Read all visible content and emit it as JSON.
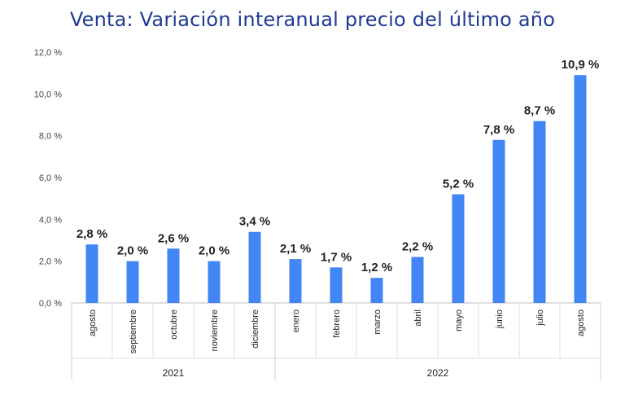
{
  "chart_data": {
    "type": "bar",
    "title": "Venta: Variación interanual precio del último año",
    "xlabel": "",
    "ylabel": "",
    "ylim": [
      0,
      12
    ],
    "ytick_labels": [
      "0,0 %",
      "2,0 %",
      "4,0 %",
      "6,0 %",
      "8,0 %",
      "10,0 %",
      "12,0 %"
    ],
    "categories": [
      "agosto",
      "septiembre",
      "octubre",
      "noviembre",
      "diciembre",
      "enero",
      "febrero",
      "marzo",
      "abril",
      "mayo",
      "junio",
      "julio",
      "agosto"
    ],
    "groups": [
      {
        "label": "2021",
        "count": 5
      },
      {
        "label": "2022",
        "count": 8
      }
    ],
    "values": [
      2.8,
      2.0,
      2.6,
      2.0,
      3.4,
      2.1,
      1.7,
      1.2,
      2.2,
      5.2,
      7.8,
      8.7,
      10.9
    ],
    "data_labels": [
      "2,8 %",
      "2,0 %",
      "2,6 %",
      "2,0 %",
      "3,4 %",
      "2,1 %",
      "1,7 %",
      "1,2 %",
      "2,2 %",
      "5,2 %",
      "7,8 %",
      "8,7 %",
      "10,9 %"
    ],
    "bar_color": "#4285f4",
    "grid": false,
    "legend": "none"
  }
}
